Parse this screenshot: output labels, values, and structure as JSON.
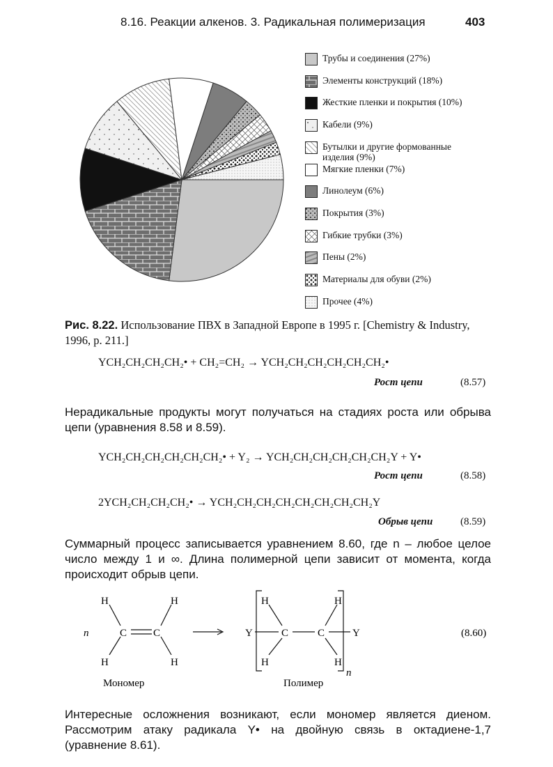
{
  "header": {
    "running_title": "8.16. Реакции алкенов. 3. Радикальная полимеризация",
    "page_number": "403"
  },
  "chart_data": {
    "type": "pie",
    "title": "",
    "start": "3 o'clock, clockwise",
    "slices": [
      {
        "label": "Трубы и соединения (27%)",
        "value": 27,
        "color": "#c8c8c8",
        "pattern": "solid-light"
      },
      {
        "label": "Элементы конструкций (18%)",
        "value": 18,
        "color": "#6e6e6e",
        "pattern": "brick"
      },
      {
        "label": "Жесткие пленки и покрытия (10%)",
        "value": 10,
        "color": "#111111",
        "pattern": "solid-black"
      },
      {
        "label": "Кабели (9%)",
        "value": 9,
        "color": "#f2f2f2",
        "pattern": "sparse-dots"
      },
      {
        "label": "Бутылки и другие формованные изделия (9%)",
        "value": 9,
        "color": "#ffffff",
        "pattern": "diagonal-hatch"
      },
      {
        "label": "Мягкие пленки (7%)",
        "value": 7,
        "color": "#ffffff",
        "pattern": "white"
      },
      {
        "label": "Линолеум (6%)",
        "value": 6,
        "color": "#7d7d7d",
        "pattern": "solid-dark"
      },
      {
        "label": "Покрытия (3%)",
        "value": 3,
        "color": "#999999",
        "pattern": "speckle"
      },
      {
        "label": "Гибкие трубки (3%)",
        "value": 3,
        "color": "#ffffff",
        "pattern": "crosshatch"
      },
      {
        "label": "Пены (2%)",
        "value": 2,
        "color": "#a8a8a8",
        "pattern": "stripes"
      },
      {
        "label": "Материалы для обуви (2%)",
        "value": 2,
        "color": "#444444",
        "pattern": "blots"
      },
      {
        "label": "Прочее (4%)",
        "value": 4,
        "color": "#f4f4f4",
        "pattern": "fine-dots"
      }
    ]
  },
  "caption": {
    "label": "Рис. 8.22.",
    "text": " Использование ПВХ в Западной Европе в 1995 г. [Chemistry & Industry, 1996, p. 211.]"
  },
  "equations": [
    {
      "formula": "YCH₂CH₂CH₂CH₂• + CH₂=CH₂ → YCH₂CH₂CH₂CH₂CH₂CH₂•",
      "label": "Рост цепи",
      "number": "(8.57)"
    },
    {
      "formula": "YCH₂CH₂CH₂CH₂CH₂CH₂• + Y₂ → YCH₂CH₂CH₂CH₂CH₂CH₂Y + Y•",
      "label": "Рост цепи",
      "number": "(8.58)"
    },
    {
      "formula": "2YCH₂CH₂CH₂CH₂• → YCH₂CH₂CH₂CH₂CH₂CH₂CH₂CH₂Y",
      "label": "Обрыв цепи",
      "number": "(8.59)"
    }
  ],
  "paragraphs": [
    "Нерадикальные продукты могут получаться на стадиях роста или обрыва цепи (уравнения 8.58 и 8.59).",
    "Суммарный процесс записывается уравнением 8.60, где n – любое целое число между 1 и ∞. Длина полимерной цепи зависит от момента, когда происходит обрыв цепи.",
    "Интересные осложнения возникают, если мономер является диеном. Рассмотрим атаку радикала Y• на двойную связь в октадиене-1,7 (уравнение 8.61)."
  ],
  "scheme": {
    "n": "n",
    "C": "C",
    "H": "H",
    "Y": "Y",
    "arrow": "⟶",
    "monomer_label": "Мономер",
    "polymer_label": "Полимер",
    "number": "(8.60)"
  }
}
